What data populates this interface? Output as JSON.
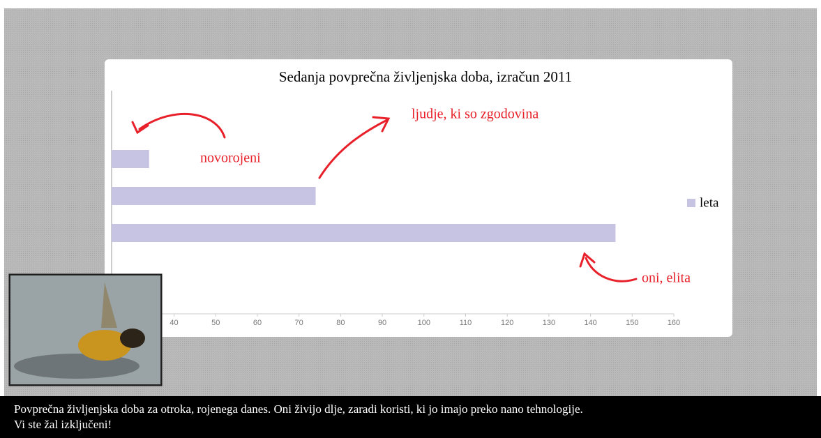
{
  "chart_data": {
    "type": "barh",
    "title": "Sedanja povprečna življenjska doba, izračun 2011",
    "categories": [
      null,
      null,
      null
    ],
    "series": [
      {
        "name": "leta",
        "color": "#c7c3e3",
        "values": [
          34,
          74,
          146
        ]
      }
    ],
    "xlim": [
      25,
      160
    ],
    "xticks": [
      40,
      50,
      60,
      70,
      80,
      90,
      100,
      110,
      120,
      130,
      140,
      150,
      160
    ],
    "legend": "right",
    "annotations": [
      "novorojeni",
      "ljudje, ki so zgodovina",
      "oni, elita"
    ]
  },
  "caption": {
    "lines": [
      "Povprečna življenjska doba za otroka, rojenega danes. Oni živijo dlje, zaradi koristi, ki jo imajo preko nano tehnologije.",
      "Vi ste žal izključeni!"
    ]
  }
}
